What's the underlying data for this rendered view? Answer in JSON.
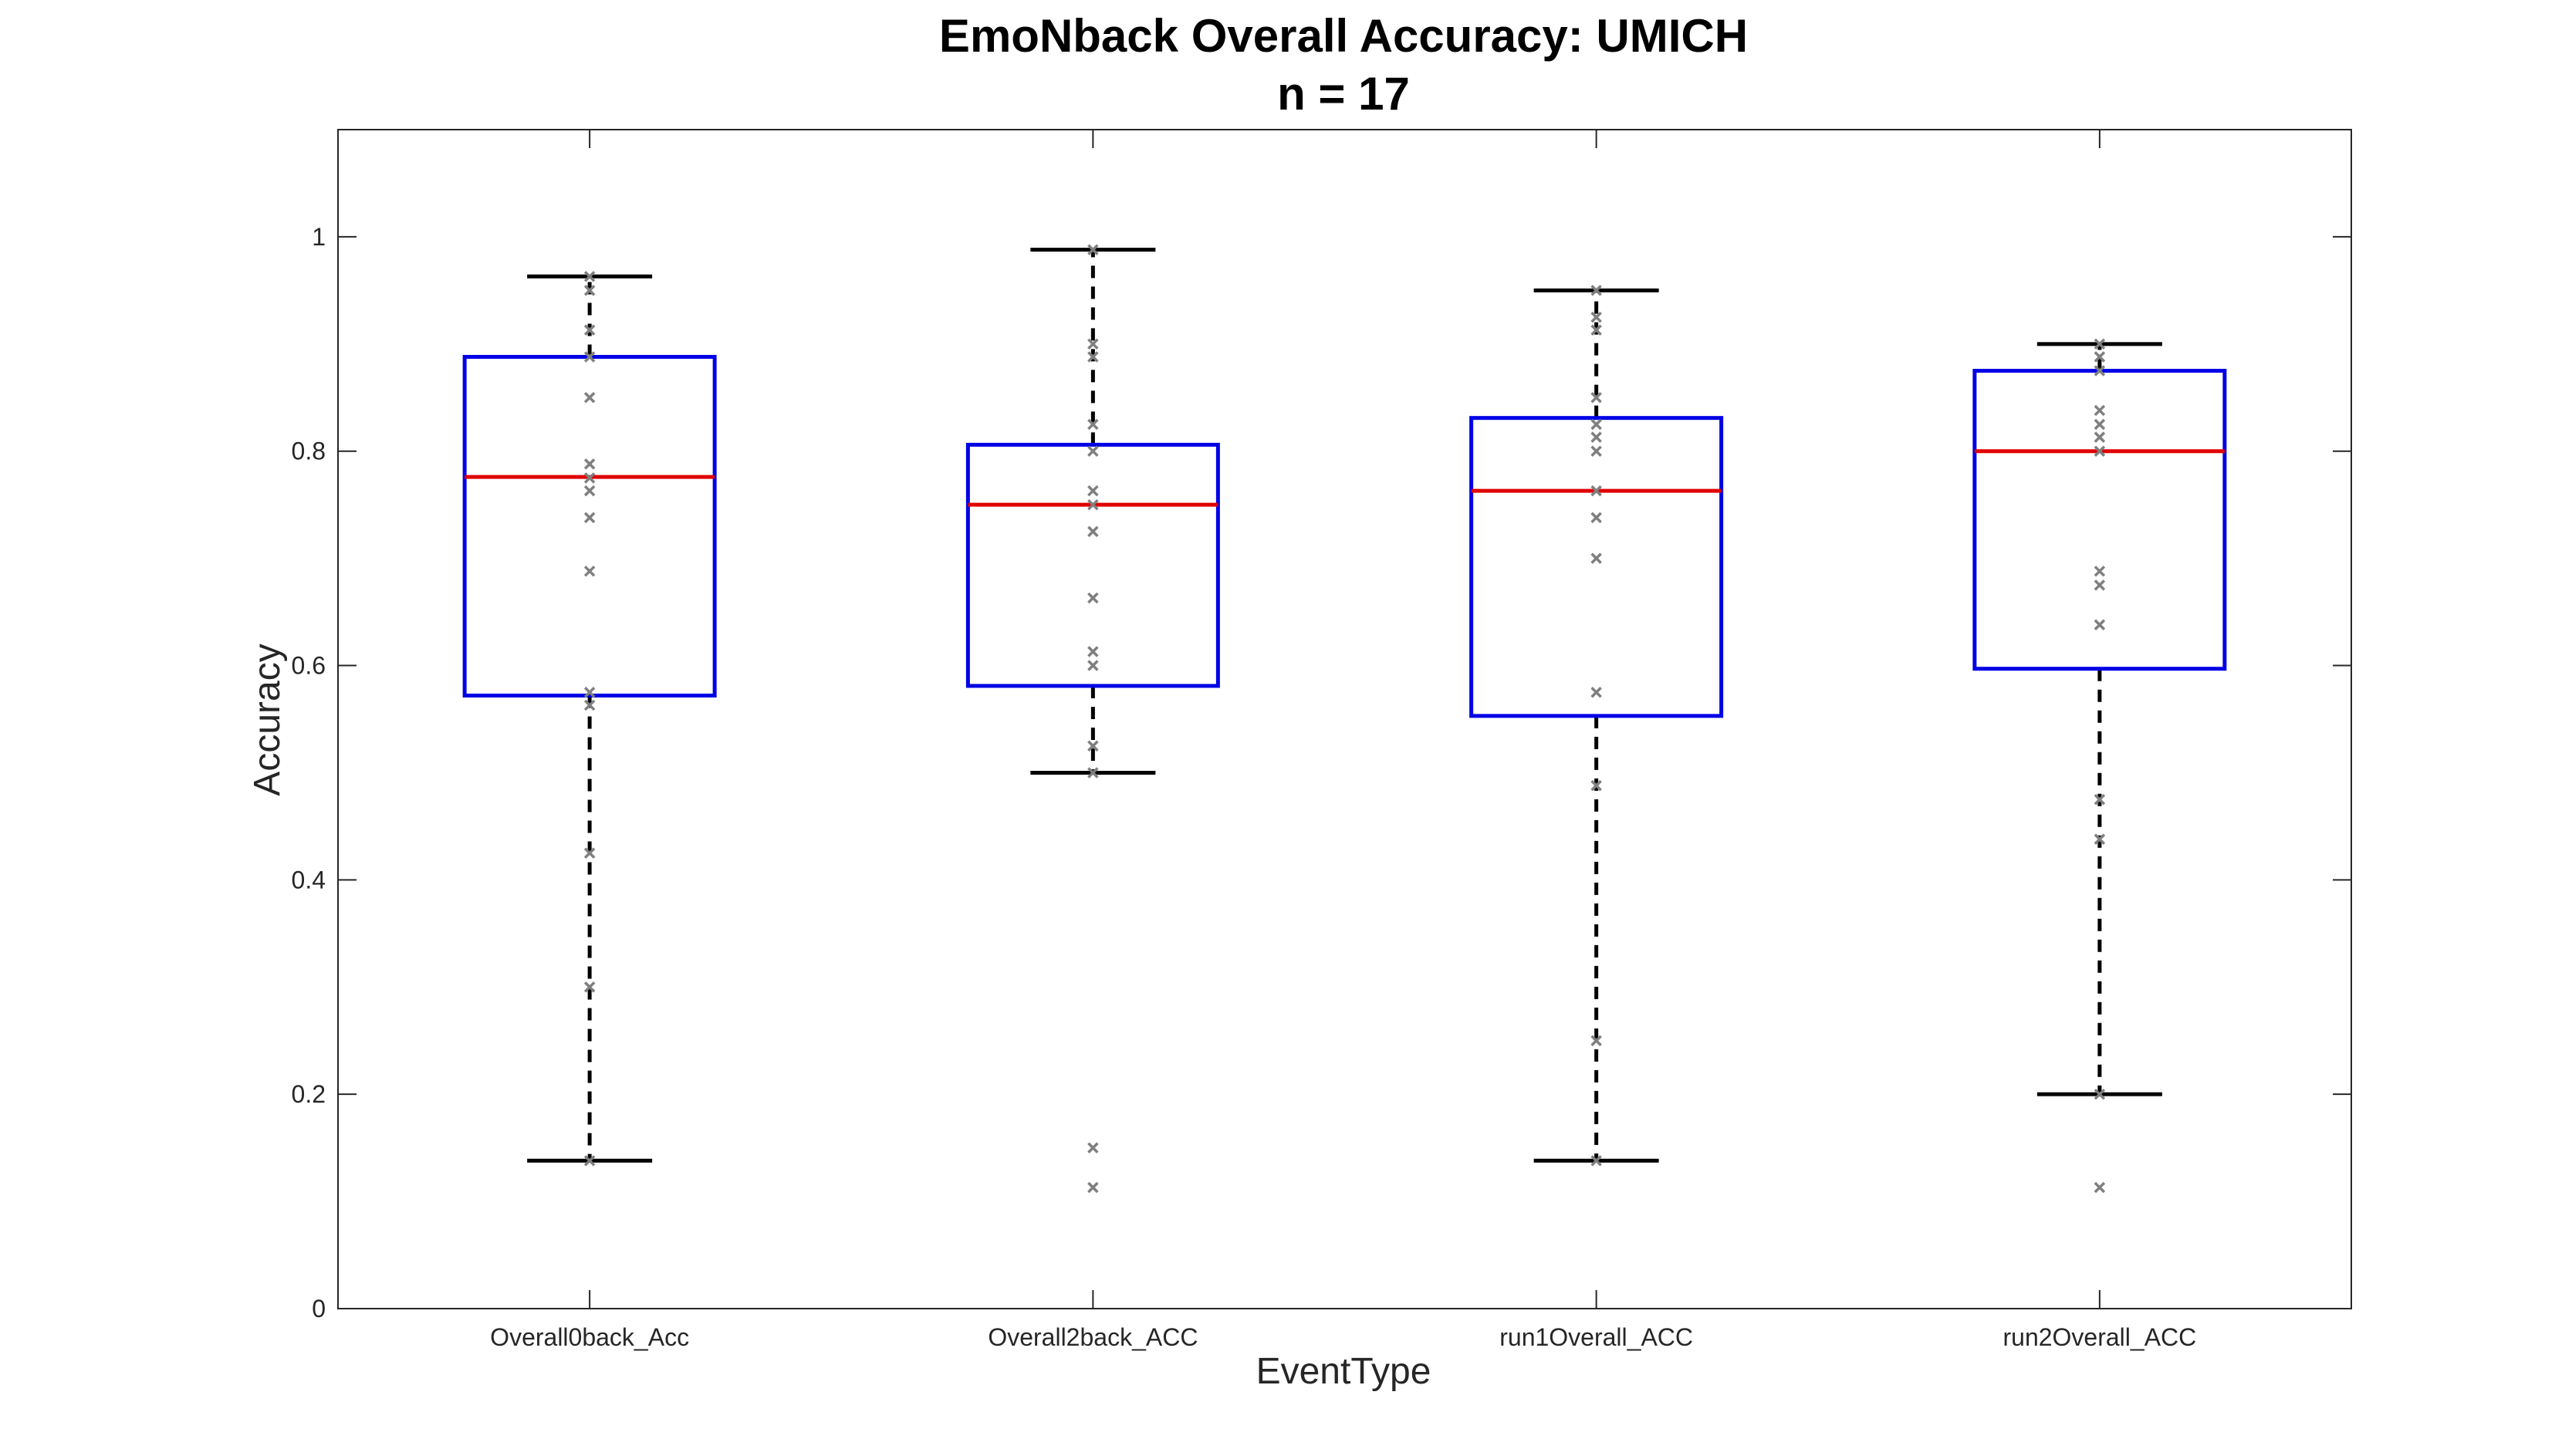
{
  "chart_data": {
    "type": "box",
    "title": [
      "EmoNback Overall Accuracy: UMICH",
      "n = 17"
    ],
    "xlabel": "EventType",
    "ylabel": "Accuracy",
    "ylim": [
      0,
      1.1
    ],
    "yticks": [
      0,
      0.2,
      0.4,
      0.6,
      0.8,
      1
    ],
    "ytick_labels": [
      "0",
      "0.2",
      "0.4",
      "0.6",
      "0.8",
      "1"
    ],
    "grid": false,
    "colors": {
      "box": "#0000e6",
      "median": "#e00000",
      "whisker": "#000000",
      "points": "#7f7f7f",
      "axes": "#262626"
    },
    "categories": [
      "Overall0back_Acc",
      "Overall2back_ACC",
      "run1Overall_ACC",
      "run2Overall_ACC"
    ],
    "boxes": [
      {
        "category": "Overall0back_Acc",
        "whisker_low": 0.138,
        "q1": 0.572,
        "median": 0.776,
        "q3": 0.888,
        "whisker_high": 0.963,
        "points": [
          0.963,
          0.95,
          0.913,
          0.888,
          0.85,
          0.788,
          0.775,
          0.763,
          0.738,
          0.688,
          0.575,
          0.563,
          0.425,
          0.3,
          0.138
        ]
      },
      {
        "category": "Overall2back_ACC",
        "whisker_low": 0.5,
        "q1": 0.581,
        "median": 0.75,
        "q3": 0.806,
        "whisker_high": 0.988,
        "points": [
          0.988,
          0.9,
          0.888,
          0.825,
          0.8,
          0.763,
          0.75,
          0.725,
          0.663,
          0.613,
          0.6,
          0.525,
          0.5,
          0.15,
          0.113
        ]
      },
      {
        "category": "run1Overall_ACC",
        "whisker_low": 0.138,
        "q1": 0.553,
        "median": 0.763,
        "q3": 0.831,
        "whisker_high": 0.95,
        "points": [
          0.95,
          0.925,
          0.913,
          0.85,
          0.825,
          0.813,
          0.8,
          0.763,
          0.738,
          0.7,
          0.575,
          0.488,
          0.25,
          0.138
        ]
      },
      {
        "category": "run2Overall_ACC",
        "whisker_low": 0.2,
        "q1": 0.597,
        "median": 0.8,
        "q3": 0.875,
        "whisker_high": 0.9,
        "points": [
          0.9,
          0.888,
          0.875,
          0.838,
          0.825,
          0.813,
          0.8,
          0.688,
          0.675,
          0.638,
          0.475,
          0.438,
          0.2,
          0.113
        ]
      }
    ]
  }
}
